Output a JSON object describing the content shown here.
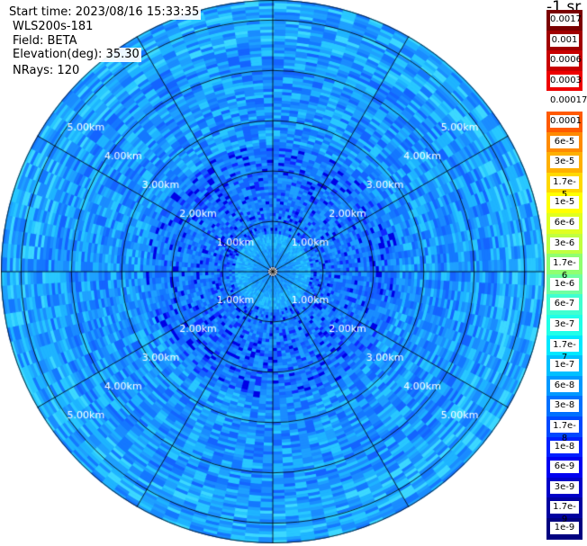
{
  "header": {
    "start_time": "Start time: 2023/08/16 15:33:35",
    "device": "WLS200s-181",
    "field": "Field: BETA",
    "elevation": "Elevation(deg): 35.30",
    "nrays": "NRays: 120"
  },
  "colorbar": {
    "unit": "-1 sr",
    "labels": [
      "0.0017",
      "0.001",
      "0.0006",
      "0.0003",
      "0.00017",
      "0.0001",
      "6e-5",
      "3e-5",
      "1.7e-5",
      "1e-5",
      "6e-6",
      "3e-6",
      "1.7e-6",
      "1e-6",
      "6e-7",
      "3e-7",
      "1.7e-7",
      "1e-7",
      "6e-8",
      "3e-8",
      "1.7e-8",
      "1e-8",
      "6e-9",
      "3e-9",
      "1.7e-9",
      "1e-9"
    ],
    "colors": [
      "#7a0000",
      "#a00000",
      "#c80000",
      "#ee0000",
      "#ffffff",
      "#ff5a00",
      "#ff8a00",
      "#ffb000",
      "#ffd800",
      "#ffff00",
      "#e0ff20",
      "#c0ff40",
      "#90ff70",
      "#70ffa0",
      "#40ffd0",
      "#20ffe8",
      "#00e8ff",
      "#00c0ff",
      "#0098ff",
      "#0070ff",
      "#0048ff",
      "#0020ff",
      "#0000f0",
      "#0000c8",
      "#0000a0",
      "#000080"
    ]
  },
  "chart_data": {
    "type": "heatmap",
    "subtype": "polar-ppi",
    "range_rings_km": [
      1,
      2,
      3,
      4,
      5
    ],
    "ring_labels": [
      "1.00km",
      "2.00km",
      "3.00km",
      "4.00km",
      "5.00km"
    ],
    "max_range_km": 5.4,
    "n_rays": 120,
    "spoke_angles_deg": [
      0,
      30,
      60,
      90,
      120,
      150,
      180,
      210,
      240,
      270,
      300,
      330
    ],
    "field": "BETA",
    "value_range": [
      1e-09,
      0.0017
    ],
    "typical_values": {
      "0-1km": "3e-8",
      "1-2.5km": "1e-8",
      "2.5-5.4km": "3e-8"
    }
  }
}
